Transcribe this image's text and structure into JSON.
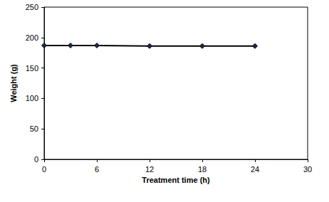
{
  "chart_data": {
    "type": "line",
    "x_label": "Treatment time (h)",
    "y_label": "Weight (g)",
    "x": [
      0,
      3,
      6,
      12,
      18,
      24
    ],
    "values": [
      187,
      187,
      187,
      186,
      186,
      186
    ],
    "color": "#000000",
    "marker": "diamond",
    "line_style": "solid",
    "xlim": [
      0,
      30
    ],
    "xticks": [
      0,
      6,
      12,
      18,
      24,
      30
    ],
    "ylim": [
      0,
      250
    ],
    "yticks": [
      0,
      50,
      100,
      150,
      200,
      250
    ],
    "grid": false
  }
}
